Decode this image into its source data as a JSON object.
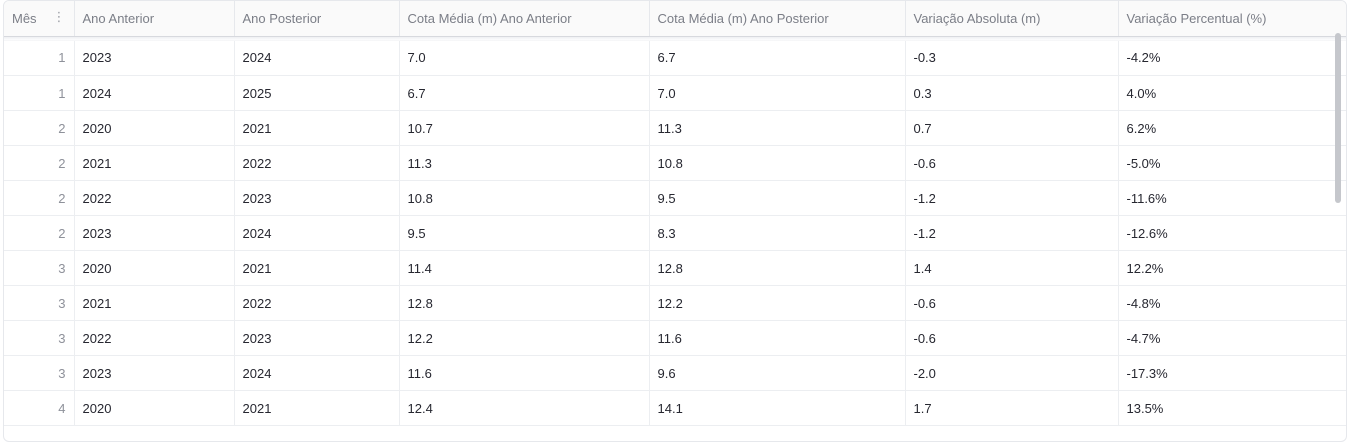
{
  "table": {
    "columns": [
      "Mês",
      "Ano Anterior",
      "Ano Posterior",
      "Cota Média (m) Ano Anterior",
      "Cota Média (m) Ano Posterior",
      "Variação Absoluta (m)",
      "Variação Percentual (%)"
    ],
    "rows": [
      [
        "1",
        "2023",
        "2024",
        "7.0",
        "6.7",
        "-0.3",
        "-4.2%"
      ],
      [
        "1",
        "2024",
        "2025",
        "6.7",
        "7.0",
        "0.3",
        "4.0%"
      ],
      [
        "2",
        "2020",
        "2021",
        "10.7",
        "11.3",
        "0.7",
        "6.2%"
      ],
      [
        "2",
        "2021",
        "2022",
        "11.3",
        "10.8",
        "-0.6",
        "-5.0%"
      ],
      [
        "2",
        "2022",
        "2023",
        "10.8",
        "9.5",
        "-1.2",
        "-11.6%"
      ],
      [
        "2",
        "2023",
        "2024",
        "9.5",
        "8.3",
        "-1.2",
        "-12.6%"
      ],
      [
        "3",
        "2020",
        "2021",
        "11.4",
        "12.8",
        "1.4",
        "12.2%"
      ],
      [
        "3",
        "2021",
        "2022",
        "12.8",
        "12.2",
        "-0.6",
        "-4.8%"
      ],
      [
        "3",
        "2022",
        "2023",
        "12.2",
        "11.6",
        "-0.6",
        "-4.7%"
      ],
      [
        "3",
        "2023",
        "2024",
        "11.6",
        "9.6",
        "-2.0",
        "-17.3%"
      ],
      [
        "4",
        "2020",
        "2021",
        "12.4",
        "14.1",
        "1.7",
        "13.5%"
      ]
    ]
  },
  "icons": {
    "column_menu": "vertical-ellipsis-icon"
  }
}
